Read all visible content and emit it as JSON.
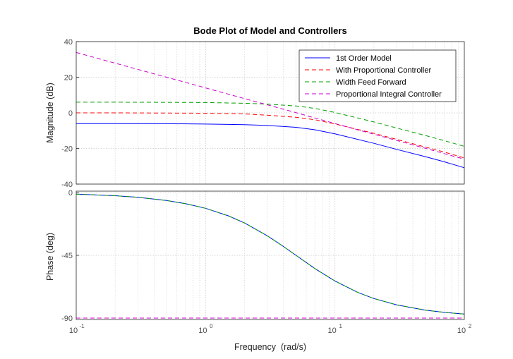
{
  "chart_data": [
    {
      "type": "line",
      "title": "Bode Plot of Model and Controllers",
      "xlabel": "",
      "ylabel": "Magnitude (dB)",
      "xscale": "log",
      "xlim": [
        0.1,
        100
      ],
      "ylim": [
        -40,
        40
      ],
      "yticks": [
        "40",
        "20",
        "0",
        "-20",
        "-40"
      ],
      "grid": true,
      "legend_position": "top-right",
      "series": [
        {
          "name": "1st Order Model",
          "color": "#0000ff",
          "style": "solid",
          "x": [
            0.1,
            0.2,
            0.5,
            1,
            2,
            3,
            5,
            7,
            10,
            20,
            30,
            50,
            70,
            100
          ],
          "y": [
            -6.0,
            -6.0,
            -6.1,
            -6.3,
            -6.6,
            -7.1,
            -8.1,
            -9.5,
            -11.8,
            -17.1,
            -20.5,
            -24.6,
            -27.5,
            -30.8
          ]
        },
        {
          "name": "With Proportional Controller",
          "color": "#ff0000",
          "style": "dashed",
          "x": [
            0.1,
            0.2,
            0.5,
            1,
            2,
            3,
            5,
            7,
            10,
            20,
            30,
            50,
            70,
            100
          ],
          "y": [
            0.0,
            0.0,
            -0.1,
            -0.2,
            -0.6,
            -1.3,
            -2.5,
            -3.9,
            -6.2,
            -11.5,
            -14.9,
            -19.2,
            -22.0,
            -25.3
          ]
        },
        {
          "name": "Width Feed Forward",
          "color": "#00a000",
          "style": "dashed",
          "x": [
            0.1,
            0.2,
            0.5,
            1,
            2,
            3,
            5,
            7,
            10,
            20,
            30,
            50,
            70,
            100
          ],
          "y": [
            6.0,
            6.0,
            5.9,
            5.8,
            5.4,
            4.9,
            3.9,
            2.5,
            0.2,
            -5.1,
            -8.5,
            -12.7,
            -15.6,
            -18.8
          ]
        },
        {
          "name": "Proportional Integral Controller",
          "color": "#cc00cc",
          "style": "dashed",
          "x": [
            0.1,
            0.2,
            0.5,
            1,
            2,
            3,
            5,
            7,
            10,
            20,
            30,
            50,
            70,
            100
          ],
          "y": [
            33.9,
            27.9,
            20.0,
            14.0,
            8.0,
            4.5,
            0.1,
            -2.9,
            -6.0,
            -12.0,
            -15.5,
            -19.9,
            -22.9,
            -26.0
          ]
        }
      ]
    },
    {
      "type": "line",
      "title": "",
      "xlabel": "Frequency  (rad/s)",
      "ylabel": "Phase (deg)",
      "xscale": "log",
      "xlim": [
        0.1,
        100
      ],
      "ylim": [
        -91,
        1
      ],
      "yticks": [
        "0",
        "-45",
        "-90"
      ],
      "xticks": [
        "10",
        "10",
        "10",
        "10"
      ],
      "xtick_exponents": [
        "-1",
        "0",
        "1",
        "2"
      ],
      "grid": true,
      "series": [
        {
          "name": "1st Order Model",
          "color": "#0000ff",
          "style": "solid",
          "x": [
            0.1,
            0.2,
            0.3,
            0.5,
            0.7,
            1,
            1.5,
            2,
            3,
            4,
            5,
            7,
            10,
            15,
            20,
            30,
            50,
            70,
            100
          ],
          "y": [
            -1.1,
            -2.3,
            -3.4,
            -5.7,
            -8.0,
            -11.3,
            -16.7,
            -21.8,
            -31.0,
            -38.7,
            -45.0,
            -54.5,
            -63.4,
            -71.6,
            -76.0,
            -80.5,
            -84.3,
            -85.9,
            -87.1
          ]
        },
        {
          "name": "Width Feed Forward",
          "color": "#00a000",
          "style": "dashed",
          "x": [
            0.1,
            0.2,
            0.3,
            0.5,
            0.7,
            1,
            1.5,
            2,
            3,
            4,
            5,
            7,
            10,
            15,
            20,
            30,
            50,
            70,
            100
          ],
          "y": [
            -1.1,
            -2.3,
            -3.4,
            -5.7,
            -8.0,
            -11.3,
            -16.7,
            -21.8,
            -31.0,
            -38.7,
            -45.0,
            -54.5,
            -63.4,
            -71.6,
            -76.0,
            -80.5,
            -84.3,
            -85.9,
            -87.1
          ]
        },
        {
          "name": "With Proportional Controller",
          "color": "#ff0000",
          "style": "dashed",
          "x": [
            0.1,
            100
          ],
          "y": [
            -90,
            -90
          ]
        },
        {
          "name": "Proportional Integral Controller",
          "color": "#cc00cc",
          "style": "dashed",
          "x": [
            0.1,
            100
          ],
          "y": [
            -90,
            -90
          ]
        }
      ]
    }
  ]
}
